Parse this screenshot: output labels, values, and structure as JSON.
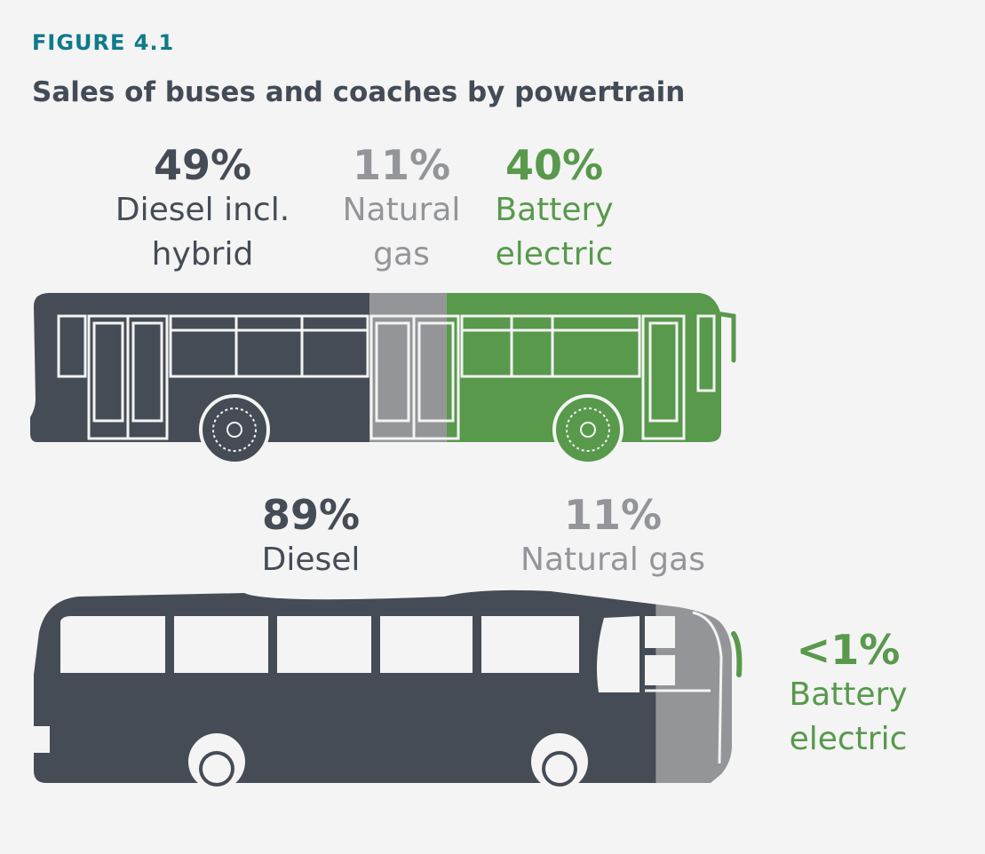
{
  "figure_label": "FIGURE 4.1",
  "title": "Sales of buses and coaches by powertrain",
  "colors": {
    "diesel": "#454c56",
    "natural_gas": "#939599",
    "battery_electric": "#58994c",
    "label_title": "#0f7a8a"
  },
  "chart_data": [
    {
      "type": "bar",
      "orientation": "horizontal-stacked",
      "subject": "bus",
      "series": [
        {
          "name": "Diesel incl. hybrid",
          "value": 49,
          "label": "49%",
          "color": "#454c56"
        },
        {
          "name": "Natural gas",
          "value": 11,
          "label": "11%",
          "color": "#939599"
        },
        {
          "name": "Battery electric",
          "value": 40,
          "label": "40%",
          "color": "#58994c"
        }
      ]
    },
    {
      "type": "bar",
      "orientation": "horizontal-stacked",
      "subject": "coach",
      "series": [
        {
          "name": "Diesel",
          "value": 89,
          "label": "89%",
          "color": "#454c56"
        },
        {
          "name": "Natural gas",
          "value": 11,
          "label": "11%",
          "color": "#939599"
        },
        {
          "name": "Battery electric",
          "value": 0.5,
          "label": "<1%",
          "color": "#58994c"
        }
      ]
    }
  ],
  "bus_labels": [
    {
      "pct": "49%",
      "name": "Diesel incl.\nhybrid"
    },
    {
      "pct": "11%",
      "name": "Natural\ngas"
    },
    {
      "pct": "40%",
      "name": "Battery\nelectric"
    }
  ],
  "coach_labels": [
    {
      "pct": "89%",
      "name": "Diesel"
    },
    {
      "pct": "11%",
      "name": "Natural gas"
    },
    {
      "pct": "<1%",
      "name": "Battery\nelectric"
    }
  ]
}
